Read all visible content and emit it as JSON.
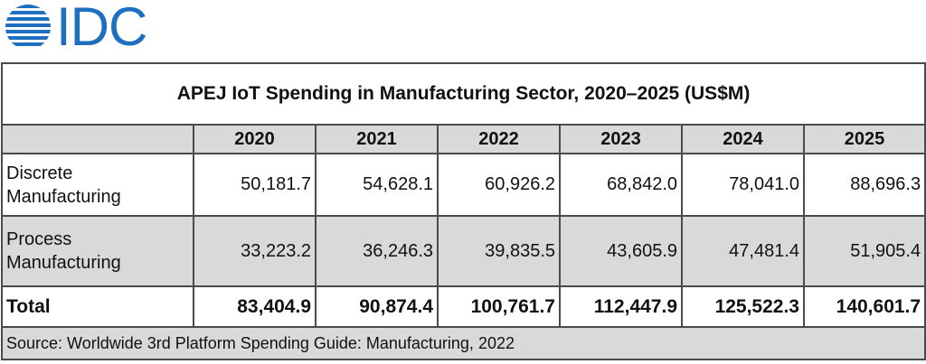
{
  "logo": {
    "text": "IDC",
    "icon": "globe-icon",
    "color": "#1f6fc1"
  },
  "table": {
    "title": "APEJ IoT Spending in Manufacturing Sector, 2020–2025 (US$M)",
    "columns": [
      "",
      "2020",
      "2021",
      "2022",
      "2023",
      "2024",
      "2025"
    ],
    "rows": [
      {
        "label_line1": "Discrete",
        "label_line2": "Manufacturing",
        "values": [
          "50,181.7",
          "54,628.1",
          "60,926.2",
          "68,842.0",
          "78,041.0",
          "88,696.3"
        ]
      },
      {
        "label_line1": "Process",
        "label_line2": "Manufacturing",
        "values": [
          "33,223.2",
          "36,246.3",
          "39,835.5",
          "43,605.9",
          "47,481.4",
          "51,905.4"
        ]
      }
    ],
    "total": {
      "label": "Total",
      "values": [
        "83,404.9",
        "90,874.4",
        "100,761.7",
        "112,447.9",
        "125,522.3",
        "140,601.7"
      ]
    },
    "source": "Source: Worldwide 3rd Platform Spending Guide: Manufacturing, 2022"
  }
}
